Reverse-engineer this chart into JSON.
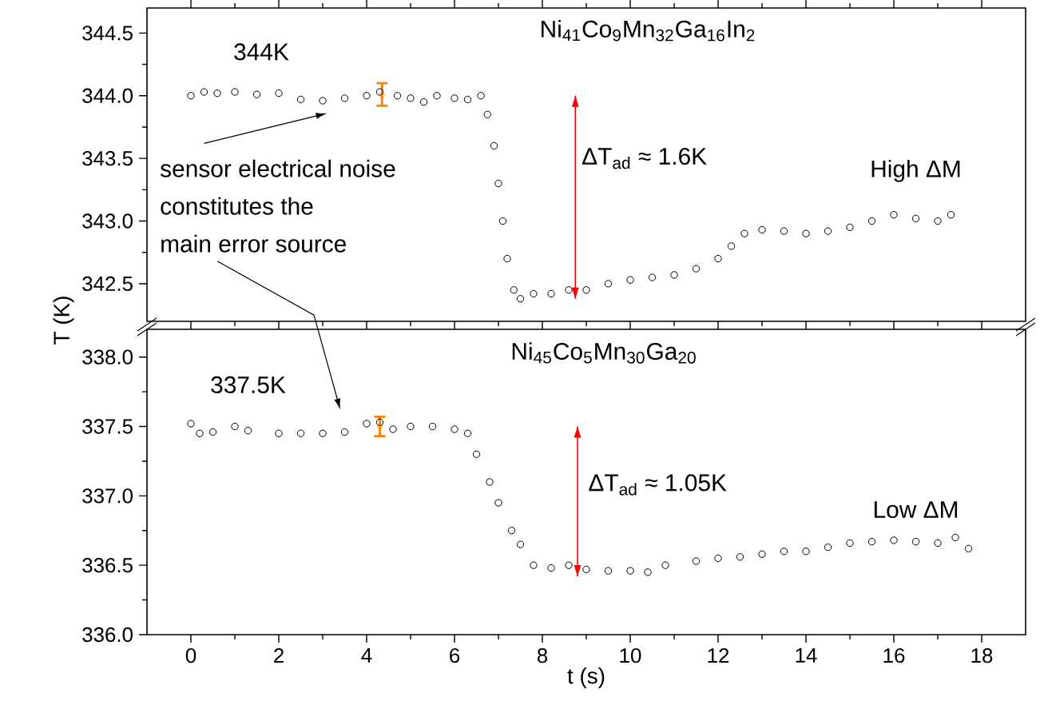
{
  "chart_data": [
    {
      "type": "scatter",
      "marker": "circle",
      "xlim": [
        -1,
        19
      ],
      "ylim": [
        342.2,
        344.7
      ],
      "tick_labels": "y",
      "xticks": [
        0,
        2,
        4,
        6,
        8,
        10,
        12,
        14,
        16,
        18
      ],
      "yticks": [
        {
          "value": 342.5,
          "label": "342.5"
        },
        {
          "value": 343,
          "label": "343.0"
        },
        {
          "value": 343.5,
          "label": "343.5"
        },
        {
          "value": 344,
          "label": "344.0"
        },
        {
          "value": 344.5,
          "label": "344.5"
        }
      ],
      "series": [
        {
          "color": "#000000",
          "x": [
            0,
            0.3,
            0.6,
            1,
            1.5,
            2,
            2.5,
            3,
            3.5,
            4,
            4.3,
            4.7,
            5,
            5.3,
            5.6,
            6,
            6.3,
            6.6,
            6.75,
            6.9,
            7.0,
            7.1,
            7.2,
            7.35,
            7.5,
            7.8,
            8.2,
            8.6,
            9.0,
            9.5,
            10,
            10.5,
            11,
            11.5,
            12,
            12.3,
            12.6,
            13,
            13.5,
            14,
            14.5,
            15,
            15.5,
            16,
            16.5,
            17,
            17.3
          ],
          "values": [
            344.0,
            344.03,
            344.02,
            344.03,
            344.01,
            344.02,
            343.97,
            343.96,
            343.98,
            344.0,
            344.03,
            344.0,
            343.98,
            343.95,
            344.0,
            343.98,
            343.97,
            344.0,
            343.85,
            343.6,
            343.3,
            343.0,
            342.7,
            342.45,
            342.38,
            342.42,
            342.42,
            342.45,
            342.45,
            342.5,
            342.53,
            342.55,
            342.57,
            342.62,
            342.7,
            342.8,
            342.9,
            342.93,
            342.92,
            342.9,
            342.92,
            342.95,
            343.0,
            343.05,
            343.02,
            343.0,
            343.05
          ]
        },
        {
          "color": "#ff8000",
          "x": [
            4.35
          ],
          "values": [
            344.01
          ],
          "errors": [
            0.09
          ]
        },
        {
          "type": "line",
          "marker": "none",
          "color": "#ff0000",
          "x": [
            8.75,
            8.75
          ],
          "values": [
            342.38,
            344.0
          ]
        }
      ],
      "annotations": [
        "Ni$_{41}$Co$_{9}$Mn$_{32}$Ga$_{16}$In$_{2}$",
        "344K",
        "ΔT$_{ad}$ ≈ 1.6K",
        "High ΔM",
        "sensor electrical noise",
        "constitutes the",
        "main error source"
      ]
    },
    {
      "type": "scatter",
      "marker": "circle",
      "xlim": [
        -1,
        19
      ],
      "ylim": [
        336.0,
        338.2
      ],
      "xlabel": "t (s)",
      "ylabel": "T (K)",
      "xticks": [
        0,
        2,
        4,
        6,
        8,
        10,
        12,
        14,
        16,
        18
      ],
      "yticks": [
        {
          "value": 336,
          "label": "336.0"
        },
        {
          "value": 336.5,
          "label": "336.5"
        },
        {
          "value": 337,
          "label": "337.0"
        },
        {
          "value": 337.5,
          "label": "337.5"
        },
        {
          "value": 338,
          "label": "338.0"
        }
      ],
      "series": [
        {
          "color": "#000000",
          "x": [
            0,
            0.2,
            0.5,
            1,
            1.3,
            2,
            2.5,
            3,
            3.5,
            4,
            4.3,
            4.6,
            5,
            5.5,
            6,
            6.3,
            6.5,
            6.8,
            7.0,
            7.3,
            7.5,
            7.8,
            8.2,
            8.6,
            9,
            9.5,
            10,
            10.4,
            10.8,
            11.5,
            12,
            12.5,
            13,
            13.5,
            14,
            14.5,
            15,
            15.5,
            16,
            16.5,
            17,
            17.4,
            17.7
          ],
          "values": [
            337.52,
            337.45,
            337.46,
            337.5,
            337.47,
            337.45,
            337.45,
            337.45,
            337.46,
            337.52,
            337.53,
            337.48,
            337.5,
            337.5,
            337.48,
            337.45,
            337.3,
            337.1,
            336.95,
            336.75,
            336.65,
            336.5,
            336.48,
            336.5,
            336.47,
            336.46,
            336.46,
            336.45,
            336.5,
            336.53,
            336.55,
            336.56,
            336.58,
            336.6,
            336.6,
            336.63,
            336.66,
            336.67,
            336.68,
            336.67,
            336.66,
            336.7,
            336.62
          ]
        },
        {
          "color": "#ff8000",
          "x": [
            4.3
          ],
          "values": [
            337.5
          ],
          "errors": [
            0.07
          ]
        },
        {
          "type": "line",
          "marker": "none",
          "color": "#ff0000",
          "x": [
            8.8,
            8.8
          ],
          "values": [
            336.42,
            337.5
          ]
        }
      ],
      "annotations": [
        "Ni$_{45}$Co$_{5}$Mn$_{30}$Ga$_{20}$",
        "337.5K",
        "ΔT$_{ad}$ ≈ 1.05K",
        "Low ΔM"
      ]
    }
  ]
}
